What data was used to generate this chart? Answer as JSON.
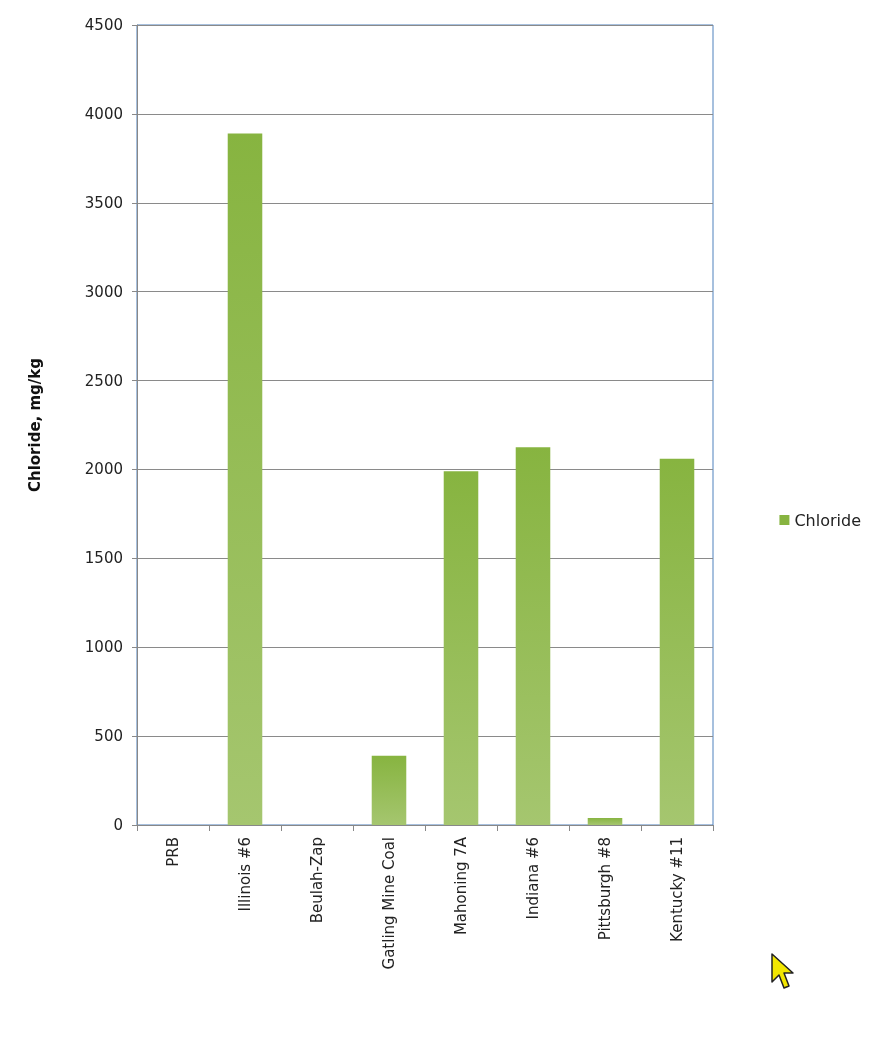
{
  "chart_data": {
    "type": "bar",
    "ylabel": "Chloride, mg/kg",
    "categories": [
      "PRB",
      "Illinois #6",
      "Beulah-Zap",
      "Gatling Mine Coal",
      "Mahoning 7A",
      "Indiana #6",
      "Pittsburgh #8",
      "Kentucky #11"
    ],
    "series": [
      {
        "name": "Chloride",
        "color": "#87b440",
        "values": [
          0,
          3890,
          0,
          390,
          1990,
          2125,
          40,
          2060
        ]
      }
    ],
    "ylim": [
      0,
      4500
    ],
    "yticks": [
      0,
      500,
      1000,
      1500,
      2000,
      2500,
      3000,
      3500,
      4000,
      4500
    ],
    "grid": "y",
    "legend": "right"
  }
}
